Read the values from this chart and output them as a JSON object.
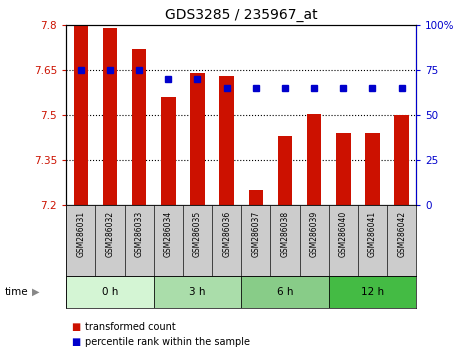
{
  "title": "GDS3285 / 235967_at",
  "samples": [
    "GSM286031",
    "GSM286032",
    "GSM286033",
    "GSM286034",
    "GSM286035",
    "GSM286036",
    "GSM286037",
    "GSM286038",
    "GSM286039",
    "GSM286040",
    "GSM286041",
    "GSM286042"
  ],
  "bar_values": [
    7.8,
    7.79,
    7.72,
    7.56,
    7.64,
    7.63,
    7.25,
    7.43,
    7.505,
    7.44,
    7.44,
    7.5
  ],
  "percentile_values": [
    75,
    75,
    75,
    70,
    70,
    65,
    65,
    65,
    65,
    65,
    65,
    65
  ],
  "bar_color": "#cc1100",
  "percentile_color": "#0000cc",
  "ylim_left": [
    7.2,
    7.8
  ],
  "ylim_right": [
    0,
    100
  ],
  "yticks_left": [
    7.2,
    7.35,
    7.5,
    7.65,
    7.8
  ],
  "yticks_right": [
    0,
    25,
    50,
    75,
    100
  ],
  "ytick_labels_left": [
    "7.2",
    "7.35",
    "7.5",
    "7.65",
    "7.8"
  ],
  "ytick_labels_right": [
    "0",
    "25",
    "50",
    "75",
    "100%"
  ],
  "grid_values": [
    7.35,
    7.5,
    7.65
  ],
  "time_groups": [
    {
      "label": "0 h",
      "start": 0,
      "end": 3,
      "color": "#d4f5d4"
    },
    {
      "label": "3 h",
      "start": 3,
      "end": 6,
      "color": "#aaddaa"
    },
    {
      "label": "6 h",
      "start": 6,
      "end": 9,
      "color": "#88cc88"
    },
    {
      "label": "12 h",
      "start": 9,
      "end": 12,
      "color": "#44bb44"
    }
  ],
  "time_label": "time",
  "legend_bar_label": "transformed count",
  "legend_pct_label": "percentile rank within the sample",
  "bar_width": 0.5,
  "tick_label_color_left": "#cc1100",
  "tick_label_color_right": "#0000cc",
  "sample_bg_color": "#cccccc",
  "title_fontsize": 10
}
